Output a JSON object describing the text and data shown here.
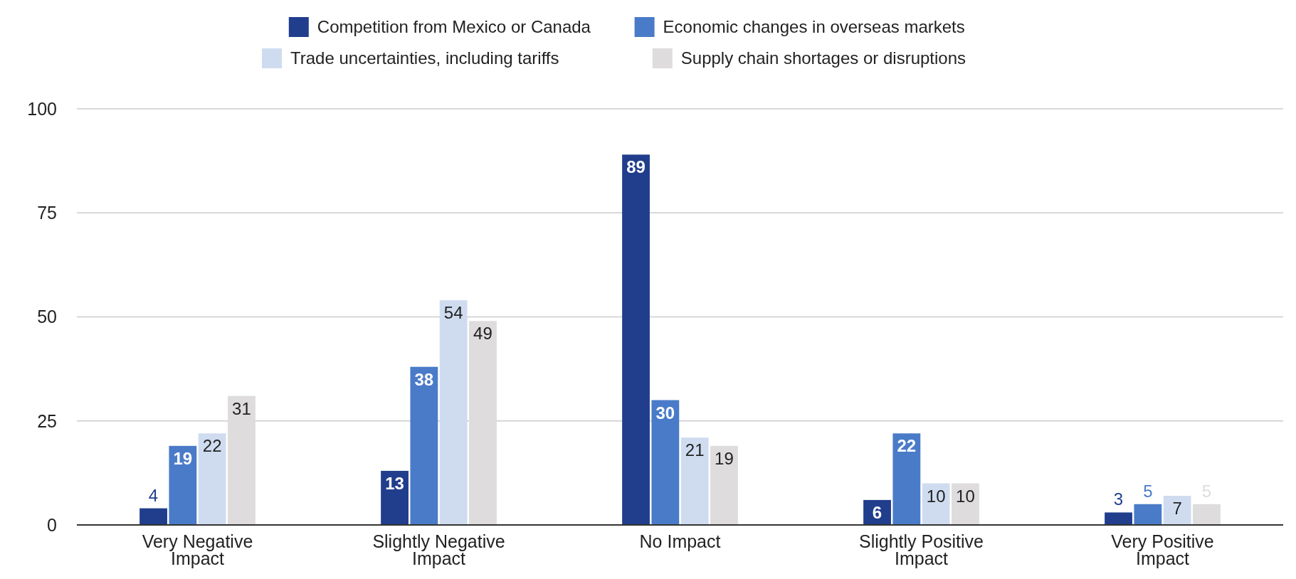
{
  "chart_data": {
    "type": "bar",
    "categories": [
      "Very Negative Impact",
      "Slightly Negative Impact",
      "No Impact",
      "Slightly Positive Impact",
      "Very Positive Impact"
    ],
    "series": [
      {
        "name": "Competition from Mexico or Canada",
        "color": "#213e8d",
        "values": [
          4,
          13,
          89,
          6,
          3
        ]
      },
      {
        "name": "Economic changes in overseas markets",
        "color": "#4a7bc8",
        "values": [
          19,
          38,
          30,
          22,
          5
        ]
      },
      {
        "name": "Trade uncertainties, including tariffs",
        "color": "#cfdcf0",
        "values": [
          22,
          54,
          21,
          10,
          7
        ]
      },
      {
        "name": "Supply chain shortages or disruptions",
        "color": "#dedcdc",
        "values": [
          31,
          49,
          19,
          10,
          5
        ]
      }
    ],
    "ylim": [
      0,
      100
    ],
    "yticks": [
      0,
      25,
      50,
      75,
      100
    ],
    "grid": "y",
    "legend": "top",
    "data_labels": true
  }
}
